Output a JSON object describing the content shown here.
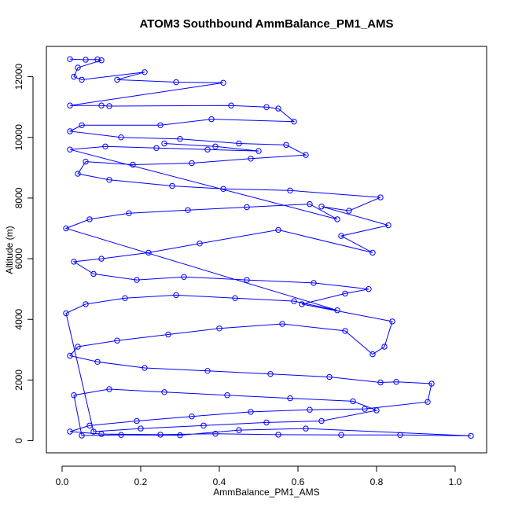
{
  "chart_data": {
    "type": "scatter",
    "connected": true,
    "title": "ATOM3 Southbound AmmBalance_PM1_AMS",
    "xlabel": "AmmBalance_PM1_AMS",
    "ylabel": "Altitude (m)",
    "xlim": [
      -0.04,
      1.08
    ],
    "ylim": [
      -400,
      13000
    ],
    "xticks": [
      0.0,
      0.2,
      0.4,
      0.6,
      0.8,
      1.0
    ],
    "xtick_labels": [
      "0.0",
      "0.2",
      "0.4",
      "0.6",
      "0.8",
      "1.0"
    ],
    "yticks": [
      0,
      2000,
      4000,
      6000,
      8000,
      10000,
      12000
    ],
    "ytick_labels": [
      "0",
      "2000",
      "4000",
      "6000",
      "8000",
      "10000",
      "12000"
    ],
    "grid": false,
    "legend": "none",
    "marker": "open-circle",
    "series": [
      {
        "color": "#0000ff",
        "points": [
          [
            0.02,
            12580
          ],
          [
            0.06,
            12560
          ],
          [
            0.09,
            12570
          ],
          [
            0.1,
            12540
          ],
          [
            0.04,
            12300
          ],
          [
            0.03,
            12000
          ],
          [
            0.05,
            11900
          ],
          [
            0.21,
            12150
          ],
          [
            0.14,
            11900
          ],
          [
            0.29,
            11820
          ],
          [
            0.41,
            11800
          ],
          [
            0.02,
            11050
          ],
          [
            0.1,
            11050
          ],
          [
            0.12,
            11030
          ],
          [
            0.43,
            11050
          ],
          [
            0.52,
            11000
          ],
          [
            0.55,
            10950
          ],
          [
            0.59,
            10520
          ],
          [
            0.38,
            10600
          ],
          [
            0.25,
            10400
          ],
          [
            0.05,
            10400
          ],
          [
            0.02,
            10200
          ],
          [
            0.15,
            10000
          ],
          [
            0.3,
            9950
          ],
          [
            0.45,
            9800
          ],
          [
            0.57,
            9750
          ],
          [
            0.62,
            9420
          ],
          [
            0.48,
            9300
          ],
          [
            0.33,
            9150
          ],
          [
            0.18,
            9100
          ],
          [
            0.06,
            9200
          ],
          [
            0.04,
            8800
          ],
          [
            0.12,
            8600
          ],
          [
            0.28,
            8400
          ],
          [
            0.41,
            8300
          ],
          [
            0.58,
            8250
          ],
          [
            0.81,
            8020
          ],
          [
            0.73,
            7580
          ],
          [
            0.66,
            7720
          ],
          [
            0.83,
            7100
          ],
          [
            0.71,
            6750
          ],
          [
            0.79,
            6200
          ],
          [
            0.55,
            6950
          ],
          [
            0.35,
            6500
          ],
          [
            0.22,
            6200
          ],
          [
            0.1,
            6000
          ],
          [
            0.03,
            5900
          ],
          [
            0.08,
            5500
          ],
          [
            0.19,
            5300
          ],
          [
            0.31,
            5400
          ],
          [
            0.47,
            5300
          ],
          [
            0.64,
            5200
          ],
          [
            0.78,
            5000
          ],
          [
            0.72,
            4850
          ],
          [
            0.61,
            4500
          ],
          [
            0.84,
            3930
          ],
          [
            0.82,
            3100
          ],
          [
            0.79,
            2850
          ],
          [
            0.72,
            3620
          ],
          [
            0.56,
            3850
          ],
          [
            0.4,
            3700
          ],
          [
            0.27,
            3500
          ],
          [
            0.14,
            3300
          ],
          [
            0.04,
            3100
          ],
          [
            0.02,
            2800
          ],
          [
            0.09,
            2600
          ],
          [
            0.21,
            2400
          ],
          [
            0.37,
            2300
          ],
          [
            0.53,
            2200
          ],
          [
            0.68,
            2100
          ],
          [
            0.81,
            1920
          ],
          [
            0.85,
            1940
          ],
          [
            0.94,
            1880
          ],
          [
            0.93,
            1280
          ],
          [
            0.77,
            1050
          ],
          [
            0.63,
            1020
          ],
          [
            0.48,
            950
          ],
          [
            0.33,
            800
          ],
          [
            0.19,
            650
          ],
          [
            0.07,
            500
          ],
          [
            0.02,
            300
          ],
          [
            0.1,
            220
          ],
          [
            0.25,
            200
          ],
          [
            0.39,
            230
          ],
          [
            0.55,
            200
          ],
          [
            0.71,
            190
          ],
          [
            0.86,
            190
          ],
          [
            1.04,
            160
          ],
          [
            0.62,
            400
          ],
          [
            0.45,
            350
          ],
          [
            0.3,
            180
          ],
          [
            0.15,
            190
          ],
          [
            0.05,
            170
          ],
          [
            0.03,
            1500
          ],
          [
            0.12,
            1700
          ],
          [
            0.26,
            1600
          ],
          [
            0.42,
            1500
          ],
          [
            0.58,
            1400
          ],
          [
            0.74,
            1300
          ],
          [
            0.8,
            1000
          ],
          [
            0.66,
            650
          ],
          [
            0.52,
            600
          ],
          [
            0.36,
            500
          ],
          [
            0.2,
            400
          ],
          [
            0.08,
            300
          ],
          [
            0.01,
            4200
          ],
          [
            0.06,
            4500
          ],
          [
            0.16,
            4700
          ],
          [
            0.29,
            4800
          ],
          [
            0.44,
            4700
          ],
          [
            0.59,
            4600
          ],
          [
            0.7,
            4300
          ],
          [
            0.01,
            7000
          ],
          [
            0.07,
            7300
          ],
          [
            0.17,
            7500
          ],
          [
            0.32,
            7600
          ],
          [
            0.47,
            7700
          ],
          [
            0.63,
            7800
          ],
          [
            0.7,
            7300
          ],
          [
            0.02,
            9600
          ],
          [
            0.11,
            9700
          ],
          [
            0.24,
            9650
          ],
          [
            0.37,
            9600
          ],
          [
            0.5,
            9550
          ],
          [
            0.39,
            9700
          ],
          [
            0.26,
            9800
          ]
        ]
      }
    ]
  }
}
